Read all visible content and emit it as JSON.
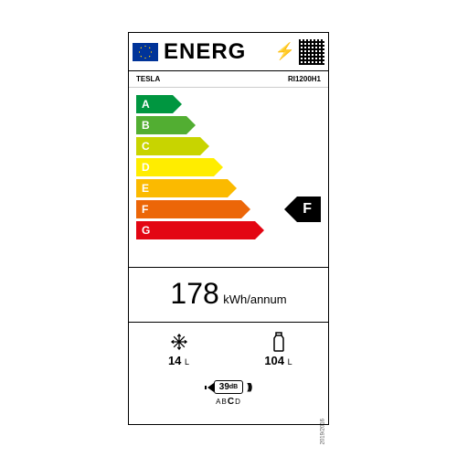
{
  "header": {
    "title": "ENERG"
  },
  "brand": "TESLA",
  "model": "RI1200H1",
  "classes": [
    {
      "letter": "A",
      "color": "#009640",
      "width": 40
    },
    {
      "letter": "B",
      "color": "#52AE32",
      "width": 55
    },
    {
      "letter": "C",
      "color": "#C8D400",
      "width": 70
    },
    {
      "letter": "D",
      "color": "#FFED00",
      "width": 85
    },
    {
      "letter": "E",
      "color": "#FBBA00",
      "width": 100
    },
    {
      "letter": "F",
      "color": "#EC6608",
      "width": 115
    },
    {
      "letter": "G",
      "color": "#E30613",
      "width": 130
    }
  ],
  "rating": {
    "letter": "F",
    "row_index": 5
  },
  "consumption": {
    "value": "178",
    "unit": "kWh/annum"
  },
  "freezer": {
    "value": "14",
    "unit": "L"
  },
  "fridge": {
    "value": "104",
    "unit": "L"
  },
  "noise": {
    "value": "39",
    "unit": "dB",
    "scale_letters": [
      "A",
      "B",
      "C",
      "D"
    ],
    "selected": "C"
  },
  "regulation": "2019/2016"
}
